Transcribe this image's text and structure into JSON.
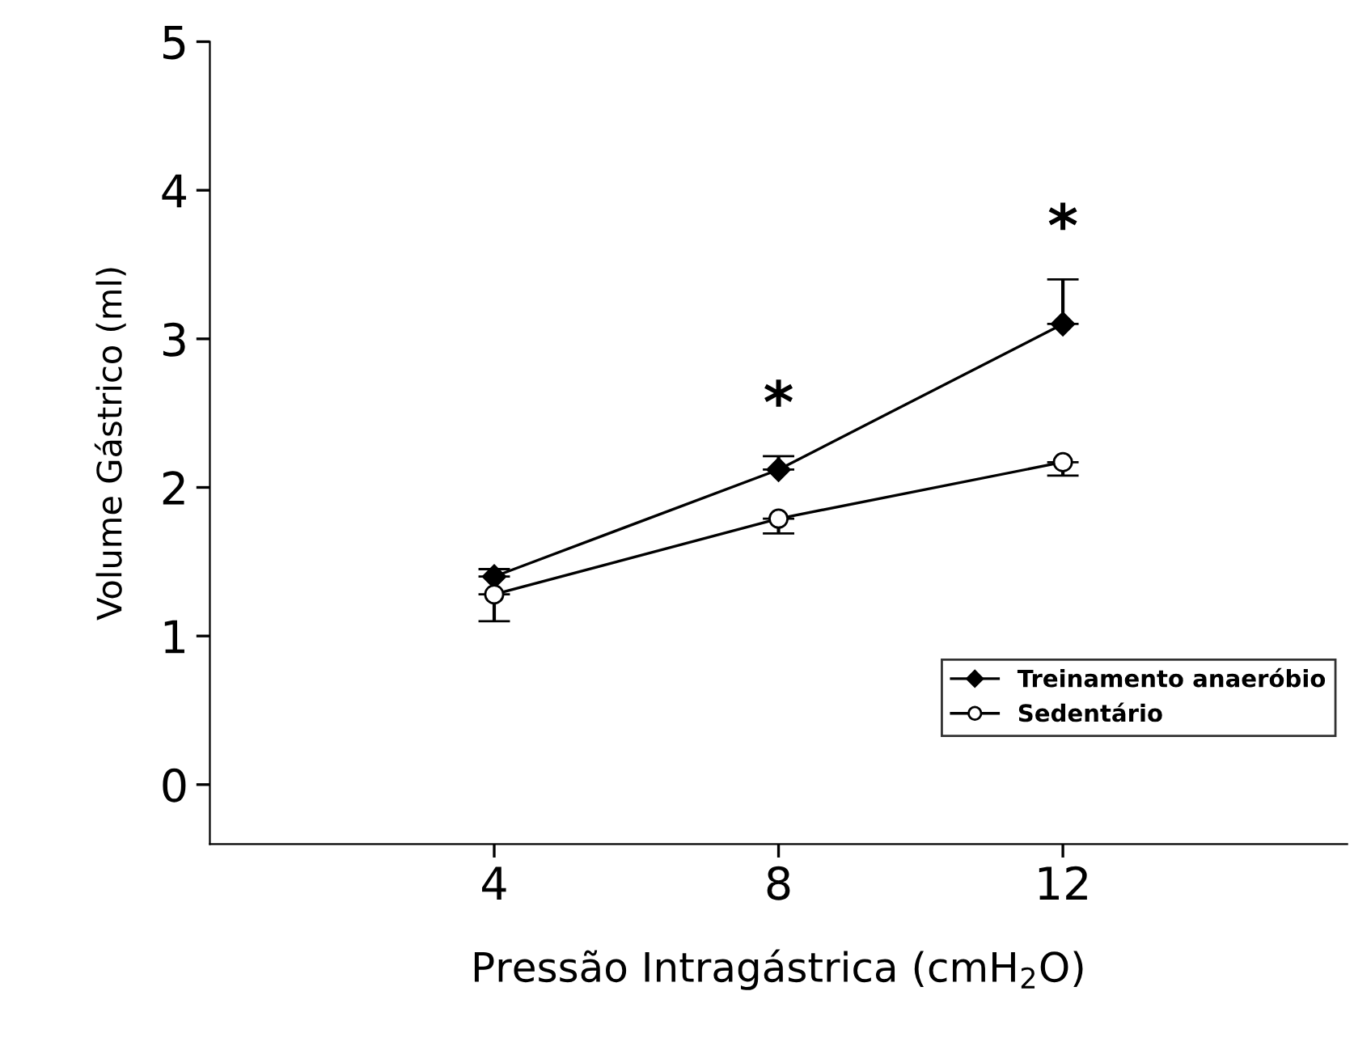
{
  "chart_data": {
    "type": "line",
    "xlabel": "Pressão Intragástrica (cmH$_{2}$O)",
    "ylabel": "Volume Gástrico (ml)",
    "x": [
      4,
      8,
      12
    ],
    "xlim": [
      0,
      16
    ],
    "xticks": [
      4,
      8,
      12
    ],
    "ylim": [
      -0.4,
      5
    ],
    "yticks": [
      0,
      1,
      2,
      3,
      4,
      5
    ],
    "series": [
      {
        "name": "Treinamento anaeróbio",
        "color": "#000000",
        "marker": "diamond",
        "values": [
          1.4,
          2.12,
          3.1
        ],
        "errors": [
          [
            1.4,
            1.45
          ],
          [
            2.12,
            2.21
          ],
          [
            3.1,
            3.4
          ]
        ]
      },
      {
        "name": "Sedentário",
        "color": "#000000",
        "marker": "circle",
        "values": [
          1.28,
          1.79,
          2.17
        ],
        "errors": [
          [
            1.1,
            1.28
          ],
          [
            1.69,
            1.79
          ],
          [
            2.08,
            2.17
          ]
        ]
      }
    ],
    "annotations": [
      "*",
      "*"
    ],
    "legend": "bottom right",
    "grid": false,
    "line_style": "solid"
  }
}
